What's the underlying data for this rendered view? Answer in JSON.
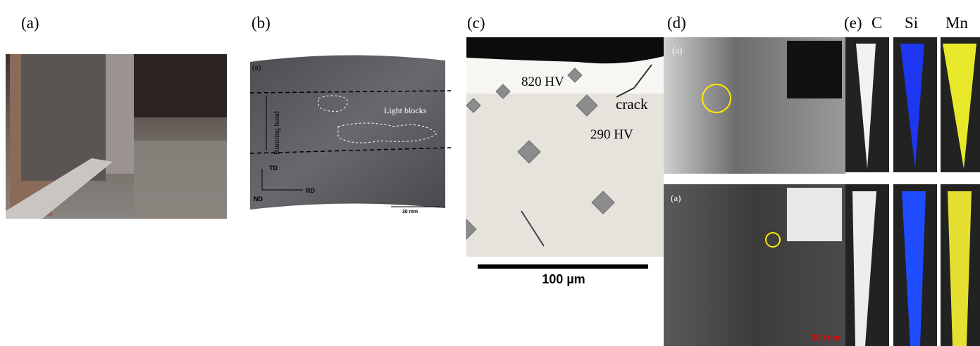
{
  "panels": [
    {
      "label": "(a)"
    },
    {
      "label": "(b)",
      "inset_label": "(a)",
      "band": "Running band",
      "annotation": "Light blocks",
      "axes": [
        "TD",
        "ND",
        "RD"
      ],
      "scale_bar": "30 mm"
    },
    {
      "label": "(c)",
      "hardness": [
        "820 HV",
        "290 HV"
      ],
      "crack": "crack",
      "scale_bar": "100 µm"
    },
    {
      "label": "(d)",
      "images": [
        "(a)",
        "(a)"
      ],
      "scale_bar": "200 nm"
    },
    {
      "label": "(e)",
      "elements": [
        "C",
        "Si",
        "Mn"
      ]
    }
  ]
}
